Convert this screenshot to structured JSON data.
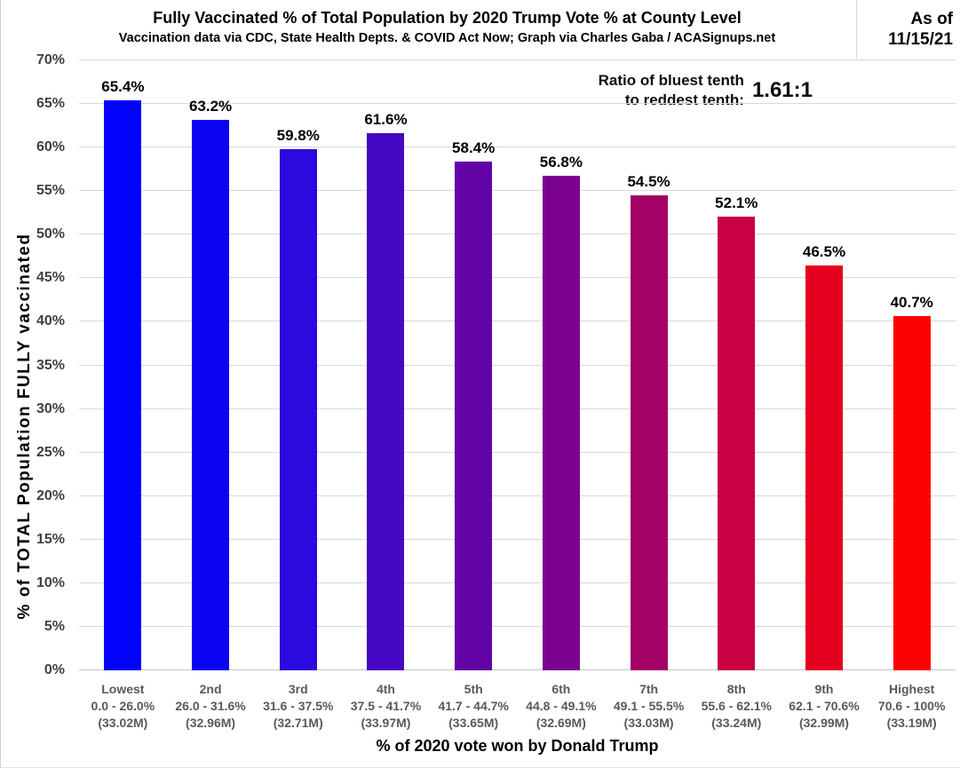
{
  "header": {
    "title": "Fully Vaccinated % of Total Population by 2020 Trump Vote % at County Level",
    "subtitle": "Vaccination data via CDC, State Health Depts. & COVID Act Now; Graph via Charles Gaba / ACASignups.net",
    "as_of_label": "As of",
    "as_of_date": "11/15/21"
  },
  "annotation": {
    "label_line1": "Ratio of bluest tenth",
    "label_line2": "to reddest tenth:",
    "value": "1.61:1"
  },
  "chart_data": {
    "type": "bar",
    "title": "Fully Vaccinated % of Total Population by 2020 Trump Vote % at County Level",
    "xlabel": "% of 2020 vote won by Donald Trump",
    "ylabel": "% of TOTAL Population FULLY vaccinated",
    "ylim": [
      0,
      70
    ],
    "grid": true,
    "legend_position": "none",
    "yticks": {
      "values": [
        0,
        5,
        10,
        15,
        20,
        25,
        30,
        35,
        40,
        45,
        50,
        55,
        60,
        65,
        70
      ],
      "labels": [
        "0%",
        "5%",
        "10%",
        "15%",
        "20%",
        "25%",
        "30%",
        "35%",
        "40%",
        "45%",
        "50%",
        "55%",
        "60%",
        "65%",
        "70%"
      ]
    },
    "categories": [
      "Lowest",
      "2nd",
      "3rd",
      "4th",
      "5th",
      "6th",
      "7th",
      "8th",
      "9th",
      "Highest"
    ],
    "bars": [
      {
        "decile": "Lowest",
        "vote_range": "0.0 - 26.0%",
        "population": "(33.02M)",
        "value": 65.4,
        "value_label": "65.4%",
        "color": "#0202fc"
      },
      {
        "decile": "2nd",
        "vote_range": "26.0 - 31.6%",
        "population": "(32.96M)",
        "value": 63.2,
        "value_label": "63.2%",
        "color": "#0b04f0"
      },
      {
        "decile": "3rd",
        "vote_range": "31.6 - 37.5%",
        "population": "(32.71M)",
        "value": 59.8,
        "value_label": "59.8%",
        "color": "#2a0ade"
      },
      {
        "decile": "4th",
        "vote_range": "37.5 - 41.7%",
        "population": "(33.97M)",
        "value": 61.6,
        "value_label": "61.6%",
        "color": "#4607c2"
      },
      {
        "decile": "5th",
        "vote_range": "41.7 - 44.7%",
        "population": "(33.65M)",
        "value": 58.4,
        "value_label": "58.4%",
        "color": "#6203a6"
      },
      {
        "decile": "6th",
        "vote_range": "44.8 - 49.1%",
        "population": "(32.69M)",
        "value": 56.8,
        "value_label": "56.8%",
        "color": "#7b0290"
      },
      {
        "decile": "7th",
        "vote_range": "49.1 - 55.5%",
        "population": "(33.03M)",
        "value": 54.5,
        "value_label": "54.5%",
        "color": "#a30165"
      },
      {
        "decile": "8th",
        "vote_range": "55.6 - 62.1%",
        "population": "(33.24M)",
        "value": 52.1,
        "value_label": "52.1%",
        "color": "#c70142"
      },
      {
        "decile": "9th",
        "vote_range": "62.1 - 70.6%",
        "population": "(32.99M)",
        "value": 46.5,
        "value_label": "46.5%",
        "color": "#e60020"
      },
      {
        "decile": "Highest",
        "vote_range": "70.6 - 100%",
        "population": "(33.19M)",
        "value": 40.7,
        "value_label": "40.7%",
        "color": "#fe0101"
      }
    ],
    "colors": {
      "gridline": "#d9d9d9",
      "axis_line": "#c6c6c6",
      "x_label_text": "#595959",
      "y_tick_text": "#404040",
      "bluest": "#0202fc",
      "reddest": "#fe0101"
    }
  }
}
